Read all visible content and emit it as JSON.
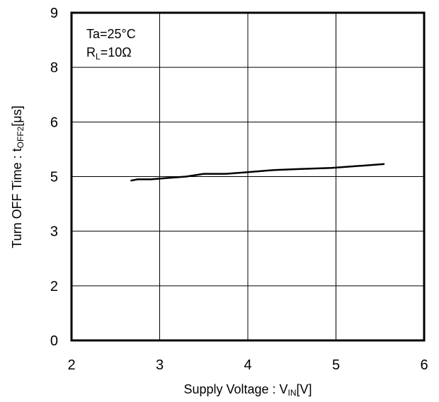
{
  "chart_data": {
    "type": "line",
    "xlabel": {
      "main": "Supply Voltage : V",
      "sub": "IN",
      "unit": "[V]"
    },
    "ylabel": {
      "main": "Turn OFF Time : t",
      "sub": "OFF2",
      "unit": "[μs]"
    },
    "annotations": [
      {
        "main": "Ta=25°C",
        "sub": "",
        "rest": ""
      },
      {
        "main": "R",
        "sub": "L",
        "rest": "=10Ω"
      }
    ],
    "xlim": [
      2,
      6
    ],
    "ylim_ticks": [
      "0",
      "2",
      "3",
      "5",
      "6",
      "8",
      "9"
    ],
    "xticks": [
      "2",
      "3",
      "4",
      "5",
      "6"
    ],
    "grid": true,
    "series": [
      {
        "x": [
          2.67,
          2.75,
          2.9,
          3.1,
          3.3,
          3.5,
          3.75,
          4.0,
          4.3,
          4.6,
          4.95,
          5.3,
          5.55
        ],
        "y": [
          4.85,
          4.9,
          4.9,
          4.95,
          5.0,
          5.05,
          5.05,
          5.08,
          5.12,
          5.14,
          5.16,
          5.2,
          5.23
        ]
      }
    ]
  }
}
